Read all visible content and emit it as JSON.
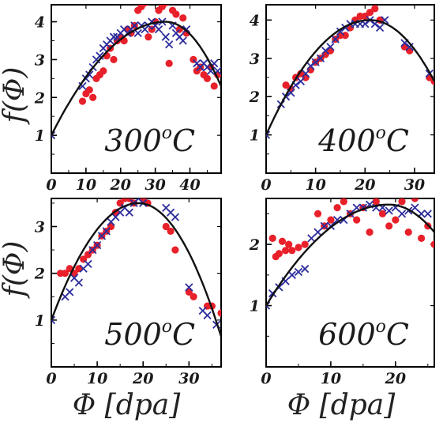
{
  "colors": {
    "series_red": "#e8202a",
    "series_blue": "#2c2c9c",
    "fit_line": "#111111",
    "frame": "#000000"
  },
  "xlabel": "Φ [dpa]",
  "ylabel": "f(Φ)",
  "chart_data": [
    {
      "type": "scatter",
      "label_main": "300",
      "label_sup": "o",
      "label_unit": "C",
      "xlim": [
        0,
        49
      ],
      "ylim": [
        0,
        4.45
      ],
      "xticks": [
        0,
        10,
        20,
        30,
        40
      ],
      "yticks": [
        1,
        2,
        3,
        4
      ],
      "fit": {
        "peak_x": 33,
        "peak_y": 4.0,
        "end_x": 48.5,
        "end_y": 2.4
      },
      "series": [
        {
          "marker": "circle",
          "color": "red",
          "points": [
            [
              9,
              1.9
            ],
            [
              10,
              2.1
            ],
            [
              11,
              2.2
            ],
            [
              12,
              2.0
            ],
            [
              13,
              2.5
            ],
            [
              14,
              2.6
            ],
            [
              15,
              2.7
            ],
            [
              16,
              3.1
            ],
            [
              17,
              3.3
            ],
            [
              18,
              3.0
            ],
            [
              19,
              3.5
            ],
            [
              20,
              3.6
            ],
            [
              21,
              3.5
            ],
            [
              22,
              3.8
            ],
            [
              23,
              3.7
            ],
            [
              24,
              3.9
            ],
            [
              25,
              4.3
            ],
            [
              26,
              4.4
            ],
            [
              27,
              4.5
            ],
            [
              28,
              3.6
            ],
            [
              29,
              3.8
            ],
            [
              30,
              4.0
            ],
            [
              31,
              4.3
            ],
            [
              32,
              4.4
            ],
            [
              33,
              4.5
            ],
            [
              34,
              2.9
            ],
            [
              35,
              4.3
            ],
            [
              36,
              4.2
            ],
            [
              37,
              3.8
            ],
            [
              38,
              4.1
            ],
            [
              39,
              3.7
            ],
            [
              41,
              3.0
            ],
            [
              42,
              2.7
            ],
            [
              43,
              2.8
            ],
            [
              44,
              2.6
            ],
            [
              45,
              2.5
            ],
            [
              46,
              2.8
            ],
            [
              47,
              2.3
            ],
            [
              48,
              2.6
            ]
          ]
        },
        {
          "marker": "x",
          "color": "blue",
          "points": [
            [
              0,
              1.0
            ],
            [
              9,
              2.3
            ],
            [
              10,
              2.5
            ],
            [
              11,
              2.6
            ],
            [
              12,
              2.8
            ],
            [
              13,
              3.0
            ],
            [
              14,
              3.1
            ],
            [
              15,
              3.3
            ],
            [
              16,
              3.4
            ],
            [
              17,
              3.5
            ],
            [
              18,
              3.6
            ],
            [
              19,
              3.6
            ],
            [
              20,
              3.7
            ],
            [
              21,
              3.8
            ],
            [
              22,
              3.7
            ],
            [
              23,
              3.8
            ],
            [
              24,
              3.9
            ],
            [
              25,
              3.7
            ],
            [
              26,
              3.9
            ],
            [
              27,
              3.8
            ],
            [
              28,
              3.9
            ],
            [
              29,
              4.0
            ],
            [
              30,
              3.9
            ],
            [
              31,
              3.8
            ],
            [
              32,
              4.0
            ],
            [
              33,
              3.6
            ],
            [
              34,
              3.4
            ],
            [
              35,
              3.9
            ],
            [
              36,
              3.7
            ],
            [
              37,
              3.6
            ],
            [
              38,
              3.5
            ],
            [
              39,
              3.8
            ],
            [
              42,
              2.9
            ],
            [
              43,
              2.8
            ],
            [
              44,
              2.9
            ],
            [
              45,
              2.8
            ],
            [
              46,
              2.7
            ],
            [
              47,
              2.9
            ],
            [
              48,
              2.7
            ]
          ]
        }
      ]
    },
    {
      "type": "scatter",
      "label_main": "400",
      "label_sup": "o",
      "label_unit": "C",
      "xlim": [
        0,
        34
      ],
      "ylim": [
        0,
        4.4
      ],
      "xticks": [
        0,
        10,
        20,
        30
      ],
      "yticks": [
        1,
        2,
        3,
        4
      ],
      "fit": {
        "peak_x": 21,
        "peak_y": 4.0,
        "end_x": 34,
        "end_y": 2.4
      },
      "series": [
        {
          "marker": "circle",
          "color": "red",
          "points": [
            [
              4,
              2.3
            ],
            [
              5,
              2.2
            ],
            [
              6,
              2.5
            ],
            [
              7,
              2.6
            ],
            [
              8,
              2.5
            ],
            [
              9,
              2.7
            ],
            [
              10,
              2.9
            ],
            [
              11,
              3.0
            ],
            [
              12,
              3.1
            ],
            [
              13,
              3.2
            ],
            [
              14,
              3.5
            ],
            [
              15,
              3.6
            ],
            [
              16,
              3.6
            ],
            [
              17,
              3.8
            ],
            [
              18,
              4.0
            ],
            [
              19,
              4.1
            ],
            [
              20,
              4.1
            ],
            [
              21,
              4.2
            ],
            [
              22,
              4.3
            ],
            [
              23,
              4.0
            ],
            [
              28,
              3.3
            ],
            [
              29,
              3.2
            ],
            [
              33,
              2.5
            ],
            [
              34,
              2.4
            ]
          ]
        },
        {
          "marker": "x",
          "color": "blue",
          "points": [
            [
              0,
              1.0
            ],
            [
              3,
              1.8
            ],
            [
              4,
              2.0
            ],
            [
              5,
              2.1
            ],
            [
              6,
              2.3
            ],
            [
              7,
              2.4
            ],
            [
              8,
              2.6
            ],
            [
              9,
              2.8
            ],
            [
              10,
              2.9
            ],
            [
              11,
              3.0
            ],
            [
              12,
              3.2
            ],
            [
              13,
              3.3
            ],
            [
              14,
              3.5
            ],
            [
              15,
              3.7
            ],
            [
              16,
              3.8
            ],
            [
              17,
              3.9
            ],
            [
              18,
              3.9
            ],
            [
              19,
              3.9
            ],
            [
              20,
              3.9
            ],
            [
              21,
              4.0
            ],
            [
              22,
              3.9
            ],
            [
              23,
              3.8
            ],
            [
              24,
              4.0
            ],
            [
              28,
              3.4
            ],
            [
              29,
              3.3
            ],
            [
              33,
              2.6
            ]
          ]
        }
      ]
    },
    {
      "type": "scatter",
      "label_main": "500",
      "label_sup": "o",
      "label_unit": "C",
      "xlim": [
        0,
        37
      ],
      "ylim": [
        0,
        3.6
      ],
      "xticks": [
        0,
        10,
        20,
        30
      ],
      "yticks": [
        1,
        2,
        3
      ],
      "fit": {
        "peak_x": 19,
        "peak_y": 3.5,
        "end_x": 37,
        "end_y": 0.65
      },
      "series": [
        {
          "marker": "circle",
          "color": "red",
          "points": [
            [
              2,
              2.0
            ],
            [
              3,
              2.0
            ],
            [
              4,
              2.1
            ],
            [
              5,
              2.0
            ],
            [
              6,
              2.1
            ],
            [
              7,
              2.3
            ],
            [
              8,
              2.4
            ],
            [
              9,
              2.5
            ],
            [
              10,
              2.6
            ],
            [
              11,
              2.8
            ],
            [
              12,
              2.9
            ],
            [
              13,
              3.0
            ],
            [
              14,
              3.3
            ],
            [
              15,
              3.5
            ],
            [
              16,
              3.6
            ],
            [
              17,
              3.6
            ],
            [
              18,
              3.5
            ],
            [
              19,
              3.7
            ],
            [
              20,
              3.6
            ],
            [
              21,
              3.5
            ],
            [
              25,
              3.0
            ],
            [
              26,
              2.9
            ],
            [
              27,
              2.5
            ],
            [
              30,
              1.6
            ],
            [
              31,
              1.5
            ],
            [
              34,
              1.3
            ],
            [
              35,
              1.3
            ],
            [
              37,
              1.15
            ]
          ]
        },
        {
          "marker": "x",
          "color": "blue",
          "points": [
            [
              0,
              1.0
            ],
            [
              3,
              1.5
            ],
            [
              4,
              1.6
            ],
            [
              5,
              1.9
            ],
            [
              6,
              1.8
            ],
            [
              7,
              2.1
            ],
            [
              8,
              2.2
            ],
            [
              9,
              2.5
            ],
            [
              10,
              2.6
            ],
            [
              11,
              2.8
            ],
            [
              12,
              2.9
            ],
            [
              13,
              3.1
            ],
            [
              14,
              3.2
            ],
            [
              15,
              3.3
            ],
            [
              16,
              3.4
            ],
            [
              17,
              3.3
            ],
            [
              18,
              3.5
            ],
            [
              19,
              3.6
            ],
            [
              20,
              3.5
            ],
            [
              25,
              3.4
            ],
            [
              26,
              3.3
            ],
            [
              27,
              3.2
            ],
            [
              30,
              1.7
            ],
            [
              33,
              1.2
            ],
            [
              34,
              1.1
            ],
            [
              36,
              0.9
            ]
          ]
        }
      ]
    },
    {
      "type": "scatter",
      "label_main": "600",
      "label_sup": "o",
      "label_unit": "C",
      "xlim": [
        0,
        26
      ],
      "ylim": [
        0,
        2.75
      ],
      "xticks": [
        0,
        10,
        20
      ],
      "yticks": [
        1,
        2
      ],
      "fit": {
        "peak_x": 19,
        "peak_y": 2.65,
        "end_x": 26,
        "end_y": 2.2
      },
      "series": [
        {
          "marker": "circle",
          "color": "red",
          "points": [
            [
              1,
              2.1
            ],
            [
              1.5,
              1.8
            ],
            [
              2,
              1.85
            ],
            [
              2.5,
              2.05
            ],
            [
              3,
              1.9
            ],
            [
              3.5,
              2.0
            ],
            [
              4,
              1.9
            ],
            [
              5,
              1.95
            ],
            [
              6,
              2.0
            ],
            [
              8,
              2.5
            ],
            [
              9,
              2.3
            ],
            [
              10,
              2.4
            ],
            [
              11,
              2.6
            ],
            [
              12,
              2.7
            ],
            [
              13,
              2.5
            ],
            [
              14,
              2.4
            ],
            [
              15,
              2.6
            ],
            [
              16,
              2.2
            ],
            [
              17,
              2.7
            ],
            [
              18,
              2.5
            ],
            [
              19,
              2.3
            ],
            [
              20,
              2.4
            ],
            [
              21,
              2.7
            ],
            [
              22,
              2.2
            ],
            [
              23,
              2.75
            ],
            [
              24,
              2.1
            ],
            [
              25,
              2.3
            ],
            [
              26,
              2.0
            ]
          ]
        },
        {
          "marker": "x",
          "color": "blue",
          "points": [
            [
              0,
              1.0
            ],
            [
              1,
              1.2
            ],
            [
              2,
              1.3
            ],
            [
              3,
              1.4
            ],
            [
              4,
              1.5
            ],
            [
              5,
              1.55
            ],
            [
              6,
              1.6
            ],
            [
              7,
              2.1
            ],
            [
              8,
              2.2
            ],
            [
              9,
              2.3
            ],
            [
              10,
              2.3
            ],
            [
              11,
              2.4
            ],
            [
              12,
              2.4
            ],
            [
              13,
              2.5
            ],
            [
              14,
              2.6
            ],
            [
              15,
              2.6
            ],
            [
              16,
              2.65
            ],
            [
              17,
              2.6
            ],
            [
              18,
              2.6
            ],
            [
              19,
              2.55
            ],
            [
              20,
              2.6
            ],
            [
              21,
              2.5
            ],
            [
              22,
              2.55
            ],
            [
              23,
              2.6
            ],
            [
              24,
              2.5
            ],
            [
              25,
              2.5
            ]
          ]
        }
      ]
    }
  ]
}
